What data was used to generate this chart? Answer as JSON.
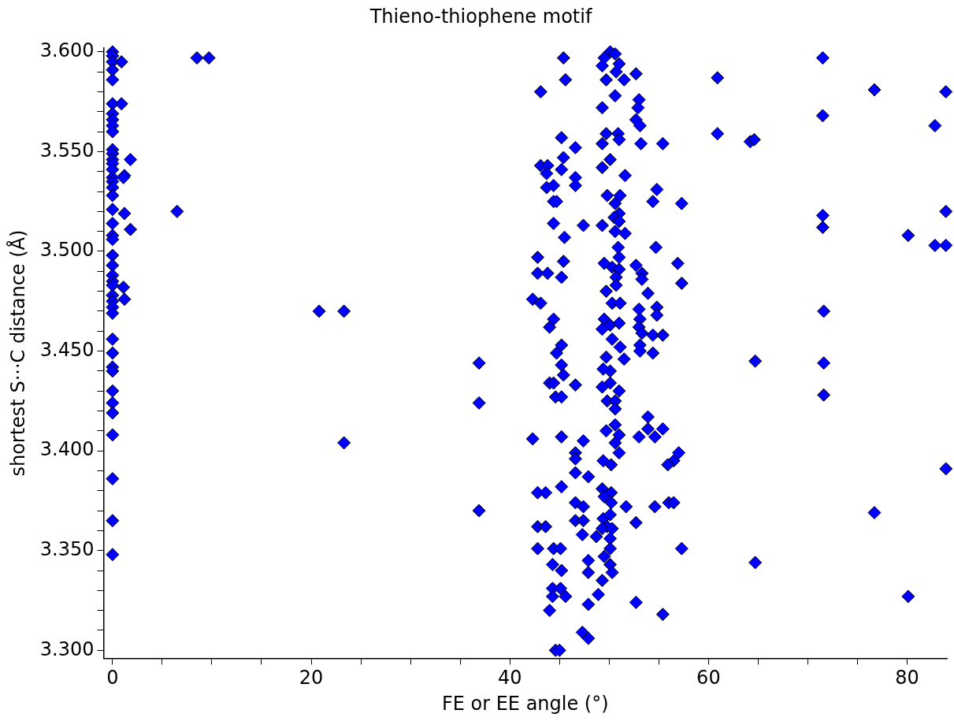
{
  "chart_data": {
    "type": "scatter",
    "title": "Thieno-thiophene motif",
    "xlabel": "FE or EE angle (°)",
    "ylabel": "shortest S···C distance (Å)",
    "xlim": [
      -0.9,
      84
    ],
    "ylim": [
      3.296,
      3.602
    ],
    "xticks": [
      0,
      {
        "value": 5,
        "label": null
      },
      {
        "value": 10,
        "label": null
      },
      {
        "value": 15,
        "label": null
      },
      20,
      {
        "value": 25,
        "label": null
      },
      {
        "value": 30,
        "label": null
      },
      {
        "value": 35,
        "label": null
      },
      40,
      {
        "value": 45,
        "label": null
      },
      {
        "value": 50,
        "label": null
      },
      {
        "value": 55,
        "label": null
      },
      60,
      {
        "value": 65,
        "label": null
      },
      {
        "value": 70,
        "label": null
      },
      {
        "value": 75,
        "label": null
      },
      80
    ],
    "yticks": [
      {
        "value": 3.3,
        "label": "3.300"
      },
      {
        "value": 3.31,
        "label": null
      },
      {
        "value": 3.32,
        "label": null
      },
      {
        "value": 3.33,
        "label": null
      },
      {
        "value": 3.34,
        "label": null
      },
      {
        "value": 3.35,
        "label": "3.350"
      },
      {
        "value": 3.36,
        "label": null
      },
      {
        "value": 3.37,
        "label": null
      },
      {
        "value": 3.38,
        "label": null
      },
      {
        "value": 3.39,
        "label": null
      },
      {
        "value": 3.4,
        "label": "3.400"
      },
      {
        "value": 3.41,
        "label": null
      },
      {
        "value": 3.42,
        "label": null
      },
      {
        "value": 3.43,
        "label": null
      },
      {
        "value": 3.44,
        "label": null
      },
      {
        "value": 3.45,
        "label": "3.450"
      },
      {
        "value": 3.46,
        "label": null
      },
      {
        "value": 3.47,
        "label": null
      },
      {
        "value": 3.48,
        "label": null
      },
      {
        "value": 3.49,
        "label": null
      },
      {
        "value": 3.5,
        "label": "3.500"
      },
      {
        "value": 3.51,
        "label": null
      },
      {
        "value": 3.52,
        "label": null
      },
      {
        "value": 3.53,
        "label": null
      },
      {
        "value": 3.54,
        "label": null
      },
      {
        "value": 3.55,
        "label": "3.550"
      },
      {
        "value": 3.56,
        "label": null
      },
      {
        "value": 3.57,
        "label": null
      },
      {
        "value": 3.58,
        "label": null
      },
      {
        "value": 3.59,
        "label": null
      },
      {
        "value": 3.6,
        "label": "3.600"
      }
    ],
    "grid": false,
    "legend": false,
    "marker": "diamond",
    "series": [
      {
        "color": "#0000ff",
        "x": [
          0,
          0,
          0,
          0,
          0,
          0,
          0,
          0,
          0,
          0,
          0,
          0,
          0,
          0,
          0,
          0,
          0,
          0,
          0,
          0,
          0,
          0,
          0,
          0,
          0,
          0,
          0,
          0,
          0,
          0,
          0,
          0,
          0,
          0,
          0,
          0,
          0,
          0,
          0,
          0,
          0,
          0,
          0,
          0.9,
          0.9,
          1.8,
          1.2,
          1.1,
          6.5,
          1.2,
          1.8,
          1.1,
          1.2,
          8.5,
          9.7,
          20.8,
          23.3,
          23.3,
          36.9,
          36.9,
          36.9,
          45.4,
          45.6,
          43.1,
          50.1,
          49.5,
          50.6,
          49.3,
          51.0,
          50.7,
          49.7,
          51.5,
          52.7,
          50.6,
          53.0,
          52.9,
          49.3,
          52.7,
          53.1,
          45.2,
          46.6,
          49.7,
          50.9,
          51.0,
          49.3,
          53.2,
          55.4,
          45.4,
          43.1,
          43.8,
          43.7,
          45.2,
          50.1,
          49.3,
          51.6,
          46.6,
          46.6,
          43.7,
          44.4,
          54.8,
          54.4,
          57.3,
          49.8,
          51.1,
          50.6,
          51.0,
          50.5,
          51.0,
          44.4,
          44.7,
          44.4,
          47.4,
          49.3,
          50.6,
          51.6,
          45.5,
          50.9,
          54.7,
          51.0,
          42.8,
          45.4,
          49.5,
          50.3,
          51.0,
          52.7,
          53.3,
          56.9,
          42.8,
          43.8,
          45.2,
          53.3,
          57.3,
          50.7,
          50.7,
          49.7,
          53.9,
          42.3,
          43.1,
          50.3,
          51.1,
          53.0,
          54.8,
          54.8,
          44.4,
          44.0,
          49.5,
          50.1,
          51.0,
          49.3,
          53.1,
          53.0,
          53.3,
          54.4,
          55.4,
          45.2,
          50.3,
          51.1,
          53.1,
          44.7,
          45.2,
          45.4,
          44.0,
          44.4,
          46.6,
          44.6,
          45.2,
          51.5,
          49.7,
          50.1,
          49.4,
          50.1,
          49.3,
          51.0,
          49.8,
          50.6,
          50.6,
          53.1,
          54.4,
          53.9,
          53.9,
          55.4,
          53.0,
          54.6,
          57.0,
          56.5,
          55.9,
          49.7,
          50.6,
          51.0,
          50.6,
          51.0,
          49.4,
          50.2,
          42.3,
          45.2,
          47.4,
          46.6,
          46.6,
          46.6,
          47.9,
          45.2,
          42.8,
          43.6,
          49.3,
          50.2,
          49.5,
          50.2,
          51.7,
          46.6,
          47.4,
          46.6,
          47.4,
          49.4,
          50.1,
          49.8,
          49.3,
          50.3,
          47.3,
          48.7,
          50.1,
          42.8,
          43.6,
          52.7,
          54.6,
          56.0,
          56.5,
          42.8,
          44.4,
          45.1,
          50.1,
          57.3,
          44.3,
          45.2,
          47.9,
          47.9,
          49.5,
          50.1,
          50.3,
          49.3,
          48.9,
          44.3,
          45.1,
          44.3,
          45.6,
          44.0,
          47.9,
          52.7,
          55.4,
          47.3,
          47.9,
          44.6,
          45.0,
          71.5,
          60.9,
          76.7,
          83.9,
          71.5,
          60.9,
          64.2,
          64.6,
          82.8,
          71.5,
          71.5,
          80.1,
          82.8,
          83.9,
          83.9,
          71.6,
          64.7,
          71.6,
          71.6,
          83.9,
          76.7,
          64.7,
          80.1
        ],
        "values": [
          3.6,
          3.598,
          3.595,
          3.591,
          3.586,
          3.574,
          3.569,
          3.566,
          3.563,
          3.56,
          3.551,
          3.549,
          3.546,
          3.544,
          3.541,
          3.537,
          3.535,
          3.532,
          3.528,
          3.521,
          3.514,
          3.508,
          3.506,
          3.498,
          3.493,
          3.488,
          3.485,
          3.483,
          3.478,
          3.475,
          3.472,
          3.469,
          3.456,
          3.449,
          3.442,
          3.44,
          3.43,
          3.424,
          3.419,
          3.408,
          3.386,
          3.365,
          3.348,
          3.595,
          3.574,
          3.546,
          3.538,
          3.537,
          3.52,
          3.519,
          3.511,
          3.482,
          3.476,
          3.597,
          3.597,
          3.47,
          3.47,
          3.404,
          3.444,
          3.424,
          3.37,
          3.597,
          3.586,
          3.58,
          3.6,
          3.597,
          3.599,
          3.593,
          3.594,
          3.59,
          3.586,
          3.586,
          3.589,
          3.578,
          3.576,
          3.572,
          3.572,
          3.566,
          3.563,
          3.557,
          3.552,
          3.559,
          3.559,
          3.556,
          3.554,
          3.554,
          3.554,
          3.547,
          3.543,
          3.543,
          3.539,
          3.541,
          3.546,
          3.542,
          3.538,
          3.537,
          3.533,
          3.532,
          3.533,
          3.531,
          3.525,
          3.524,
          3.528,
          3.528,
          3.524,
          3.519,
          3.517,
          3.515,
          3.525,
          3.525,
          3.514,
          3.513,
          3.513,
          3.51,
          3.509,
          3.507,
          3.502,
          3.502,
          3.497,
          3.497,
          3.495,
          3.494,
          3.492,
          3.491,
          3.493,
          3.489,
          3.494,
          3.489,
          3.489,
          3.487,
          3.486,
          3.484,
          3.487,
          3.483,
          3.48,
          3.479,
          3.476,
          3.474,
          3.474,
          3.474,
          3.471,
          3.472,
          3.468,
          3.466,
          3.462,
          3.466,
          3.463,
          3.464,
          3.461,
          3.466,
          3.462,
          3.459,
          3.458,
          3.458,
          3.453,
          3.456,
          3.452,
          3.453,
          3.449,
          3.443,
          3.438,
          3.434,
          3.434,
          3.433,
          3.427,
          3.427,
          3.446,
          3.447,
          3.44,
          3.441,
          3.434,
          3.432,
          3.43,
          3.425,
          3.425,
          3.421,
          3.45,
          3.449,
          3.417,
          3.411,
          3.411,
          3.407,
          3.407,
          3.399,
          3.395,
          3.393,
          3.41,
          3.413,
          3.408,
          3.404,
          3.399,
          3.395,
          3.393,
          3.406,
          3.407,
          3.405,
          3.399,
          3.396,
          3.389,
          3.387,
          3.382,
          3.379,
          3.379,
          3.381,
          3.379,
          3.377,
          3.374,
          3.372,
          3.374,
          3.372,
          3.365,
          3.365,
          3.366,
          3.368,
          3.362,
          3.361,
          3.361,
          3.358,
          3.357,
          3.356,
          3.362,
          3.362,
          3.364,
          3.372,
          3.374,
          3.374,
          3.351,
          3.351,
          3.351,
          3.351,
          3.351,
          3.343,
          3.34,
          3.345,
          3.339,
          3.347,
          3.343,
          3.339,
          3.335,
          3.328,
          3.331,
          3.331,
          3.327,
          3.327,
          3.32,
          3.323,
          3.324,
          3.318,
          3.309,
          3.306,
          3.3,
          3.3,
          3.597,
          3.587,
          3.581,
          3.58,
          3.568,
          3.559,
          3.555,
          3.556,
          3.563,
          3.518,
          3.512,
          3.508,
          3.503,
          3.503,
          3.52,
          3.47,
          3.445,
          3.444,
          3.428,
          3.391,
          3.369,
          3.344,
          3.327
        ]
      }
    ]
  }
}
